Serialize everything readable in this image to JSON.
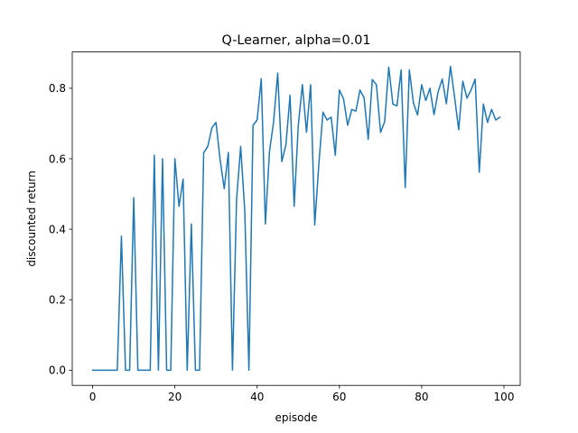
{
  "chart_data": {
    "type": "line",
    "title": "Q-Learner, alpha=0.01",
    "xlabel": "episode",
    "ylabel": "discounted return",
    "xlim": [
      -4.95,
      103.95
    ],
    "ylim": [
      -0.043,
      0.903
    ],
    "xticks": [
      0,
      20,
      40,
      60,
      80,
      100
    ],
    "xtick_labels": [
      "0",
      "20",
      "40",
      "60",
      "80",
      "100"
    ],
    "yticks": [
      0.0,
      0.2,
      0.4,
      0.6,
      0.8
    ],
    "ytick_labels": [
      "0.0",
      "0.2",
      "0.4",
      "0.6",
      "0.8"
    ],
    "grid": false,
    "line_color": "#1f77b4",
    "x": [
      0,
      1,
      2,
      3,
      4,
      5,
      6,
      7,
      8,
      9,
      10,
      11,
      12,
      13,
      14,
      15,
      16,
      17,
      18,
      19,
      20,
      21,
      22,
      23,
      24,
      25,
      26,
      27,
      28,
      29,
      30,
      31,
      32,
      33,
      34,
      35,
      36,
      37,
      38,
      39,
      40,
      41,
      42,
      43,
      44,
      45,
      46,
      47,
      48,
      49,
      50,
      51,
      52,
      53,
      54,
      55,
      56,
      57,
      58,
      59,
      60,
      61,
      62,
      63,
      64,
      65,
      66,
      67,
      68,
      69,
      70,
      71,
      72,
      73,
      74,
      75,
      76,
      77,
      78,
      79,
      80,
      81,
      82,
      83,
      84,
      85,
      86,
      87,
      88,
      89,
      90,
      91,
      92,
      93,
      94,
      95,
      96,
      97,
      98,
      99
    ],
    "values": [
      0,
      0,
      0,
      0,
      0,
      0,
      0,
      0.38,
      0,
      0,
      0.49,
      0,
      0,
      0,
      0,
      0.61,
      0,
      0.6,
      0,
      0,
      0.6,
      0.465,
      0.542,
      0,
      0.415,
      0,
      0,
      0.617,
      0.635,
      0.688,
      0.703,
      0.597,
      0.515,
      0.618,
      0,
      0.485,
      0.635,
      0.45,
      0,
      0.695,
      0.71,
      0.827,
      0.415,
      0.62,
      0.705,
      0.843,
      0.592,
      0.64,
      0.78,
      0.465,
      0.695,
      0.81,
      0.675,
      0.81,
      0.412,
      0.585,
      0.732,
      0.71,
      0.718,
      0.61,
      0.795,
      0.77,
      0.695,
      0.74,
      0.735,
      0.795,
      0.773,
      0.655,
      0.825,
      0.81,
      0.675,
      0.705,
      0.86,
      0.755,
      0.75,
      0.852,
      0.518,
      0.852,
      0.758,
      0.724,
      0.81,
      0.765,
      0.8,
      0.725,
      0.79,
      0.826,
      0.756,
      0.862,
      0.775,
      0.682,
      0.82,
      0.772,
      0.795,
      0.826,
      0.562,
      0.755,
      0.703,
      0.74,
      0.71,
      0.718
    ]
  }
}
